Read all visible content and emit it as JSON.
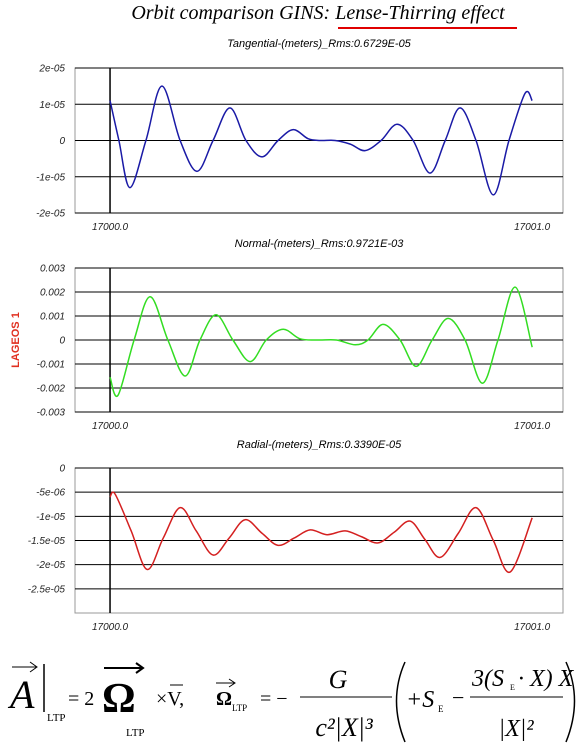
{
  "header": {
    "text": "Orbit comparison GINS: ",
    "underlined": "Lense-Thirring effect"
  },
  "side_label": "LAGEOS 1",
  "chart_data": [
    {
      "type": "line",
      "title": "Tangential-(meters)_Rms:0.6729E-05",
      "color": "#1a1aa6",
      "x": [
        17000.0,
        17000.021,
        17000.047,
        17000.085,
        17000.123,
        17000.166,
        17000.206,
        17000.244,
        17000.284,
        17000.322,
        17000.36,
        17000.398,
        17000.434,
        17000.469,
        17000.498,
        17000.533,
        17000.569,
        17000.604,
        17000.642,
        17000.68,
        17000.718,
        17000.758,
        17000.794,
        17000.829,
        17000.867,
        17000.908,
        17000.945,
        17000.983,
        17001.0
      ],
      "values": [
        1.1e-05,
        0,
        -1.3e-05,
        0,
        1.5e-05,
        0,
        -8.5e-06,
        0,
        9e-06,
        0,
        -4.5e-06,
        0,
        3e-06,
        5e-07,
        0,
        0,
        -1e-06,
        -2.8e-06,
        0,
        4.5e-06,
        0,
        -9e-06,
        0,
        9e-06,
        0,
        -1.5e-05,
        0,
        1.3e-05,
        1.1e-05
      ],
      "xlim": [
        16999.917,
        17001.073
      ],
      "ylim": [
        -2e-05,
        2e-05
      ],
      "xticks": [
        {
          "value": 17000,
          "label": "17000.0"
        },
        {
          "value": 17001,
          "label": "17001.0"
        }
      ],
      "yticks": [
        {
          "value": 2e-05,
          "label": "2e-05"
        },
        {
          "value": 1e-05,
          "label": "1e-05"
        },
        0,
        {
          "value": -1e-05,
          "label": "-1e-05"
        },
        {
          "value": -2e-05,
          "label": "-2e-05"
        }
      ],
      "grid": true
    },
    {
      "type": "line",
      "title": "Normal-(meters)_Rms:0.9721E-03",
      "color": "#33dd22",
      "x": [
        17000.0,
        17000.019,
        17000.057,
        17000.095,
        17000.137,
        17000.178,
        17000.213,
        17000.251,
        17000.291,
        17000.332,
        17000.37,
        17000.41,
        17000.45,
        17000.493,
        17000.536,
        17000.581,
        17000.611,
        17000.647,
        17000.687,
        17000.725,
        17000.763,
        17000.801,
        17000.841,
        17000.882,
        17000.919,
        17000.96,
        17001.0
      ],
      "values": [
        -0.00155,
        -0.0023,
        0,
        0.0018,
        0,
        -0.0015,
        0,
        0.00105,
        0,
        -0.0009,
        0,
        0.00045,
        5e-05,
        0,
        0,
        -0.0002,
        0,
        0.00065,
        0,
        -0.0011,
        0,
        0.0009,
        0,
        -0.0018,
        0,
        0.0022,
        -0.0003
      ],
      "xlim": [
        16999.917,
        17001.073
      ],
      "ylim": [
        -0.003,
        0.003
      ],
      "xticks": [
        {
          "value": 17000,
          "label": "17000.0"
        },
        {
          "value": 17001,
          "label": "17001.0"
        }
      ],
      "yticks": [
        0.003,
        0.002,
        0.001,
        0,
        -0.001,
        -0.002,
        -0.003
      ],
      "grid": true
    },
    {
      "type": "line",
      "title": "Radial-(meters)_Rms:0.3390E-05",
      "color": "#d42020",
      "x": [
        17000.0,
        17000.012,
        17000.05,
        17000.088,
        17000.126,
        17000.166,
        17000.204,
        17000.244,
        17000.282,
        17000.32,
        17000.36,
        17000.398,
        17000.436,
        17000.474,
        17000.514,
        17000.557,
        17000.595,
        17000.635,
        17000.673,
        17000.711,
        17000.746,
        17000.782,
        17000.825,
        17000.867,
        17000.908,
        17000.948,
        17001.0
      ],
      "values": [
        -6e-06,
        -5.4e-06,
        -1.3e-05,
        -2.1e-05,
        -1.45e-05,
        -8.2e-06,
        -1.3e-05,
        -1.8e-05,
        -1.45e-05,
        -1.07e-05,
        -1.35e-05,
        -1.6e-05,
        -1.45e-05,
        -1.28e-05,
        -1.38e-05,
        -1.3e-05,
        -1.42e-05,
        -1.55e-05,
        -1.33e-05,
        -1.1e-05,
        -1.48e-05,
        -1.85e-05,
        -1.35e-05,
        -8.2e-06,
        -1.5e-05,
        -2.15e-05,
        -1.03e-05
      ],
      "xlim": [
        16999.917,
        17001.073
      ],
      "ylim": [
        -3e-05,
        0
      ],
      "xticks": [
        {
          "value": 17000,
          "label": "17000.0"
        },
        {
          "value": 17001,
          "label": "17001.0"
        }
      ],
      "yticks": [
        0,
        {
          "value": -5e-06,
          "label": "-5e-06"
        },
        {
          "value": -1e-05,
          "label": "-1e-05"
        },
        {
          "value": -1.5e-05,
          "label": "-1.5e-05"
        },
        {
          "value": -2e-05,
          "label": "-2e-05"
        },
        {
          "value": -2.5e-05,
          "label": "-2.5e-05"
        }
      ],
      "grid": true
    }
  ],
  "formula": {
    "lhs": "A",
    "sub": "LTP",
    "eq1": "= 2",
    "omega": "Ω",
    "cross": "×V,",
    "eq2": "= −",
    "num1": "G",
    "den1": "c²|X|³",
    "term1": "+S",
    "sub_e": "E",
    "minus": "−",
    "num2": "3(S",
    "dot": "· X) X",
    "den2": "|X|²"
  }
}
